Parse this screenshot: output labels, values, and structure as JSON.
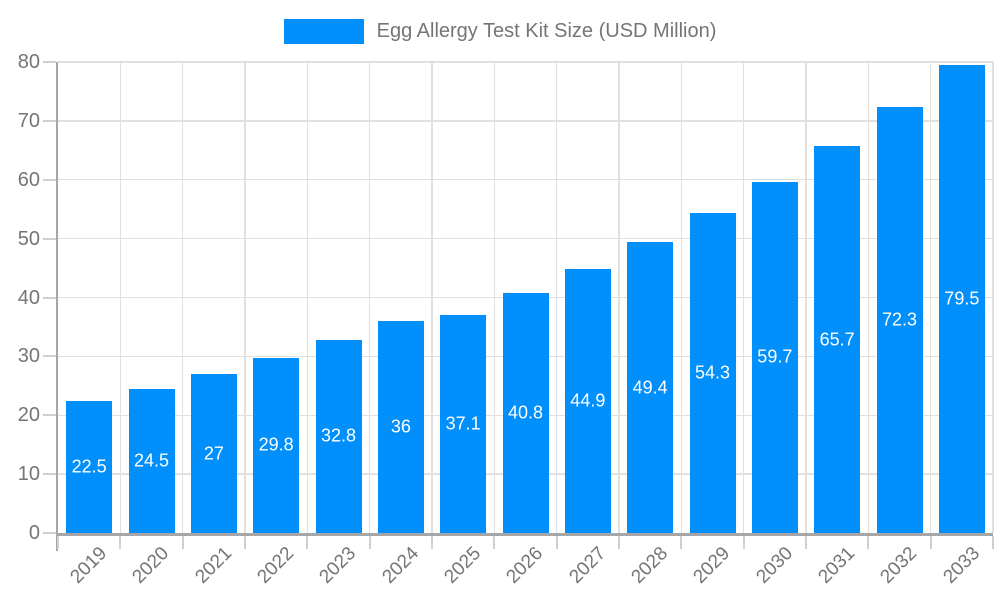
{
  "chart_data": {
    "type": "bar",
    "title": "Egg Allergy Test Kit Size (USD Million)",
    "categories": [
      "2019",
      "2020",
      "2021",
      "2022",
      "2023",
      "2024",
      "2025",
      "2026",
      "2027",
      "2028",
      "2029",
      "2030",
      "2031",
      "2032",
      "2033"
    ],
    "values": [
      22.5,
      24.5,
      27,
      29.8,
      32.8,
      36,
      37.1,
      40.8,
      44.9,
      49.4,
      54.3,
      59.7,
      65.7,
      72.3,
      79.5
    ],
    "value_labels": [
      "22.5",
      "24.5",
      "27",
      "29.8",
      "32.8",
      "36",
      "37.1",
      "40.8",
      "44.9",
      "49.4",
      "54.3",
      "59.7",
      "65.7",
      "72.3",
      "79.5"
    ],
    "xlabel": "",
    "ylabel": "",
    "ylim": [
      0,
      80
    ],
    "yticks": [
      0,
      10,
      20,
      30,
      40,
      50,
      60,
      70,
      80
    ],
    "grid": true,
    "legend_position": "top-center",
    "bar_color": "#008FFB",
    "data_label_color": "#ffffff",
    "axis_text_color": "#757575",
    "grid_color": "#e0e0e0",
    "axis_line_color": "#a6a6a6"
  }
}
